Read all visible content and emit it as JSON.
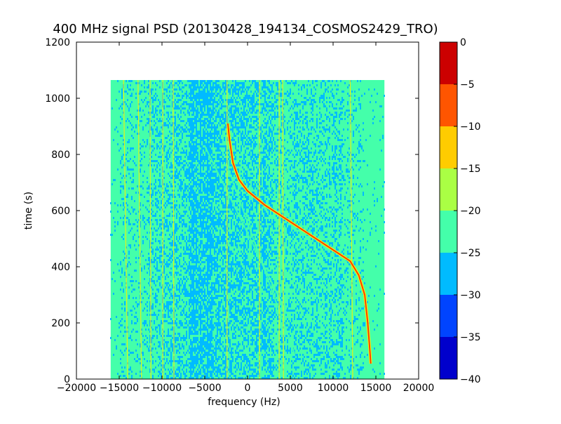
{
  "chart_data": {
    "type": "heatmap",
    "title": "400 MHz signal PSD (20130428_194134_COSMOS2429_TRO)",
    "xlabel": "frequency (Hz)",
    "ylabel": "time (s)",
    "xlim": [
      -20000,
      20000
    ],
    "ylim": [
      0,
      1200
    ],
    "x_ticks": [
      -20000,
      -15000,
      -10000,
      -5000,
      0,
      5000,
      10000,
      15000,
      20000
    ],
    "x_tick_labels": [
      "−20000",
      "−15000",
      "−10000",
      "−5000",
      "0",
      "5000",
      "10000",
      "15000",
      "20000"
    ],
    "y_ticks": [
      0,
      200,
      400,
      600,
      800,
      1000,
      1200
    ],
    "y_tick_labels": [
      "0",
      "200",
      "400",
      "600",
      "800",
      "1000",
      "1200"
    ],
    "data_extent": {
      "freq_min": -16000,
      "freq_max": 16000,
      "time_min": 0,
      "time_max": 1065
    },
    "colorbar": {
      "levels": [
        -40,
        -35,
        -30,
        -25,
        -20,
        -15,
        -10,
        -5,
        0
      ],
      "tick_labels": [
        "−40",
        "−35",
        "−30",
        "−25",
        "−20",
        "−15",
        "−10",
        "−5",
        "0"
      ],
      "colors": [
        "#0000cc",
        "#0044ff",
        "#00bbff",
        "#44ffaa",
        "#aaff44",
        "#ffcc00",
        "#ff5500",
        "#cc0000"
      ]
    },
    "background_color": "#44ffaa",
    "noise_color": "#00bbff",
    "signal_color": "#ff3300",
    "signal_edge_color": "#ffee00",
    "doppler_trace": [
      [
        14400,
        55
      ],
      [
        14300,
        100
      ],
      [
        14050,
        200
      ],
      [
        13700,
        300
      ],
      [
        13000,
        370
      ],
      [
        12000,
        420
      ],
      [
        10000,
        460
      ],
      [
        8000,
        500
      ],
      [
        6000,
        540
      ],
      [
        4000,
        580
      ],
      [
        2000,
        620
      ],
      [
        0,
        670
      ],
      [
        -1000,
        710
      ],
      [
        -1700,
        770
      ],
      [
        -2100,
        850
      ],
      [
        -2300,
        910
      ]
    ],
    "vertical_lines": [
      {
        "f_top": -14500,
        "f_bottom": -14000
      },
      {
        "f_top": -12800,
        "f_bottom": -12400
      },
      {
        "f_top": -11400,
        "f_bottom": -11300
      },
      {
        "f_top": -9900,
        "f_bottom": -9900
      },
      {
        "f_top": -8700,
        "f_bottom": -8600
      },
      {
        "f_top": -2400,
        "f_bottom": -2400
      },
      {
        "f_top": 1400,
        "f_bottom": 1400
      },
      {
        "f_top": 3700,
        "f_bottom": 3700
      },
      {
        "f_top": 4100,
        "f_bottom": 4200
      },
      {
        "f_top": 12000,
        "f_bottom": 12300
      }
    ],
    "diagonal_lines": [
      {
        "f1": -5000,
        "t1": 830,
        "f2": 4500,
        "t2": 240
      },
      {
        "f1": -2500,
        "t1": 770,
        "f2": 5500,
        "t2": 90
      }
    ]
  }
}
